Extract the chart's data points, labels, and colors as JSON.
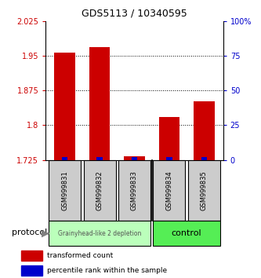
{
  "title": "GDS5113 / 10340595",
  "samples": [
    "GSM999831",
    "GSM999832",
    "GSM999833",
    "GSM999834",
    "GSM999835"
  ],
  "red_values": [
    1.957,
    1.968,
    1.732,
    1.818,
    1.852
  ],
  "blue_values": [
    2,
    2,
    2,
    2,
    2
  ],
  "ylim_left": [
    1.725,
    2.025
  ],
  "ylim_right": [
    0,
    100
  ],
  "yticks_left": [
    1.725,
    1.8,
    1.875,
    1.95,
    2.025
  ],
  "yticks_right": [
    0,
    25,
    50,
    75,
    100
  ],
  "ytick_labels_right": [
    "0",
    "25",
    "50",
    "75",
    "100%"
  ],
  "base_value": 1.725,
  "group1_color": "#bbffbb",
  "group2_color": "#55ee55",
  "group1_label": "Grainyhead-like 2 depletion",
  "group2_label": "control",
  "group1_indices": [
    0,
    1,
    2
  ],
  "group2_indices": [
    3,
    4
  ],
  "bar_bg_color": "#cccccc",
  "red_color": "#cc0000",
  "blue_color": "#0000cc",
  "legend_red": "transformed count",
  "legend_blue": "percentile rank within the sample",
  "protocol_label": "protocol"
}
